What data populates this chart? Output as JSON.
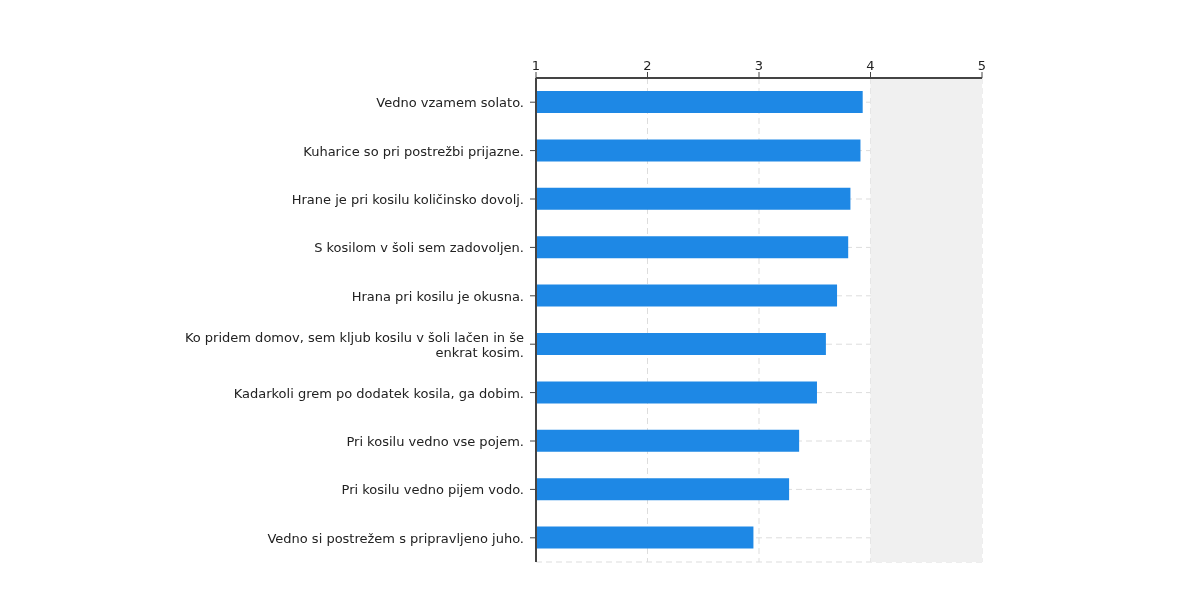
{
  "chart_data": {
    "type": "bar",
    "orientation": "horizontal",
    "categories": [
      "Vedno vzamem solato.",
      "Kuharice so pri postrežbi prijazne.",
      "Hrane je pri kosilu količinsko dovolj.",
      "S kosilom v šoli sem zadovoljen.",
      "Hrana pri kosilu je okusna.",
      "Ko pridem domov, sem kljub kosilu v šoli lačen in še enkrat kosim.",
      "Kadarkoli grem po dodatek kosila, ga dobim.",
      "Pri kosilu vedno vse pojem.",
      "Pri kosilu vedno pijem vodo.",
      "Vedno si postrežem s pripravljeno juho."
    ],
    "values": [
      3.93,
      3.91,
      3.82,
      3.8,
      3.7,
      3.6,
      3.52,
      3.36,
      3.27,
      2.95
    ],
    "color": "#1e88e5",
    "xlim": [
      1,
      5
    ],
    "xticks": [
      1,
      2,
      3,
      4,
      5
    ],
    "bands": [
      {
        "axis": "x",
        "from": 4,
        "to": 5,
        "color": "#f0f0f0"
      }
    ],
    "grid": true
  }
}
